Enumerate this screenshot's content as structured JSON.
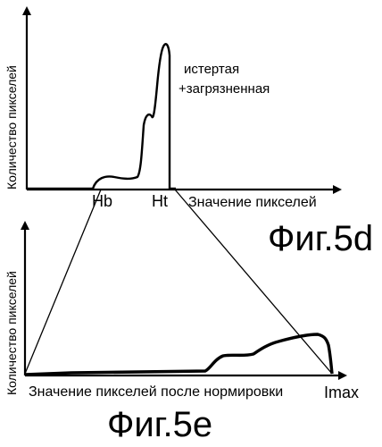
{
  "top_plot": {
    "y_label": "Количество пикселей",
    "x_label": "Значение пикселей",
    "tick_hb": "Hb",
    "tick_ht": "Ht",
    "annotation_line1": "истертая",
    "annotation_line2": "+загрязненная",
    "fig_label": "Фиг.5d"
  },
  "bottom_plot": {
    "y_label": "Количество пикселей",
    "x_label": "Значение пикселей после нормировки",
    "tick_imax": "Imax",
    "fig_label": "Фиг.5e"
  },
  "colors": {
    "ink": "#000000",
    "background": "#ffffff"
  }
}
